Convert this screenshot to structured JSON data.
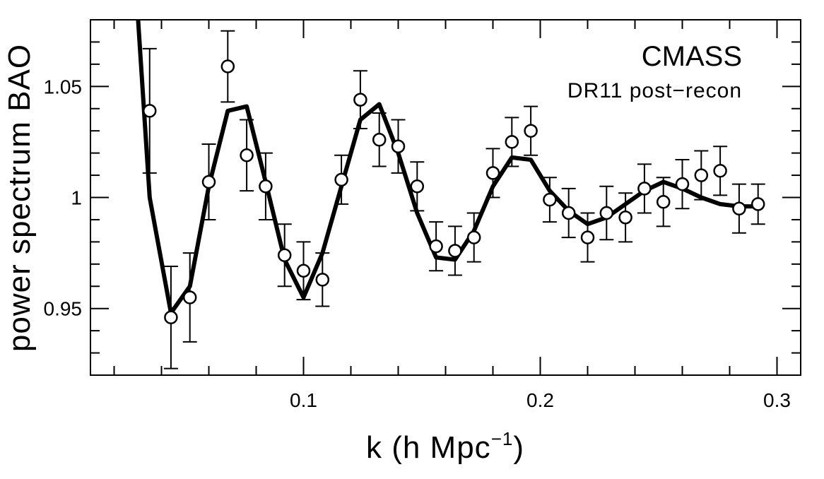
{
  "chart_data": {
    "type": "scatter",
    "title": "",
    "xlabel": "k (h Mpc",
    "xlabel_sup": "−1",
    "xlabel_close": ")",
    "ylabel": "power spectrum BAO",
    "xlim": [
      0.01,
      0.31
    ],
    "ylim": [
      0.92,
      1.08
    ],
    "annotations": [
      "CMASS",
      "DR11 post−recon"
    ],
    "x_ticks": [
      0.1,
      0.2,
      0.3
    ],
    "x_tick_labels": [
      "0.1",
      "0.2",
      "0.3"
    ],
    "y_ticks": [
      0.95,
      1.0,
      1.05
    ],
    "y_tick_labels": [
      "0.95",
      "1",
      "1.05"
    ],
    "grid": false,
    "legend": "none",
    "series": [
      {
        "type": "scatter_errorbars",
        "marker": "open-circle",
        "x": [
          0.035,
          0.044,
          0.052,
          0.06,
          0.068,
          0.076,
          0.084,
          0.092,
          0.1,
          0.108,
          0.116,
          0.124,
          0.132,
          0.14,
          0.148,
          0.156,
          0.164,
          0.172,
          0.18,
          0.188,
          0.196,
          0.204,
          0.212,
          0.22,
          0.228,
          0.236,
          0.244,
          0.252,
          0.26,
          0.268,
          0.276,
          0.284,
          0.292
        ],
        "y": [
          1.039,
          0.946,
          0.955,
          1.007,
          1.059,
          1.019,
          1.005,
          0.974,
          0.967,
          0.963,
          1.008,
          1.044,
          1.026,
          1.023,
          1.005,
          0.978,
          0.976,
          0.982,
          1.011,
          1.025,
          1.03,
          0.999,
          0.993,
          0.982,
          0.993,
          0.991,
          1.004,
          0.998,
          1.006,
          1.01,
          1.012,
          0.995,
          0.997
        ],
        "yerr": [
          0.028,
          0.023,
          0.02,
          0.017,
          0.016,
          0.016,
          0.015,
          0.014,
          0.013,
          0.012,
          0.011,
          0.013,
          0.012,
          0.012,
          0.011,
          0.011,
          0.011,
          0.011,
          0.011,
          0.011,
          0.011,
          0.01,
          0.011,
          0.011,
          0.012,
          0.011,
          0.011,
          0.011,
          0.011,
          0.011,
          0.011,
          0.011,
          0.009
        ]
      },
      {
        "type": "line",
        "x": [
          0.03,
          0.035,
          0.044,
          0.052,
          0.06,
          0.068,
          0.076,
          0.084,
          0.092,
          0.1,
          0.108,
          0.116,
          0.124,
          0.132,
          0.14,
          0.148,
          0.156,
          0.164,
          0.172,
          0.18,
          0.188,
          0.196,
          0.204,
          0.212,
          0.22,
          0.228,
          0.236,
          0.244,
          0.252,
          0.26,
          0.268,
          0.276,
          0.284,
          0.292
        ],
        "y": [
          1.082,
          1.0,
          0.948,
          0.96,
          1.005,
          1.039,
          1.041,
          1.007,
          0.972,
          0.955,
          0.975,
          1.005,
          1.035,
          1.042,
          1.02,
          0.993,
          0.973,
          0.972,
          0.985,
          1.005,
          1.018,
          1.017,
          1.003,
          0.994,
          0.988,
          0.991,
          0.997,
          1.003,
          1.007,
          1.004,
          1.0,
          0.997,
          0.996,
          0.996
        ]
      }
    ]
  }
}
